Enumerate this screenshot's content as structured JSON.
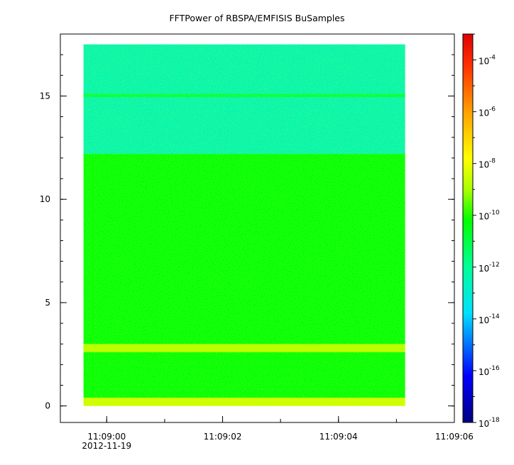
{
  "chart_data": {
    "type": "heatmap",
    "title": "FFTPower of RBSPA/EMFISIS  BuSamples",
    "xlabel": "",
    "ylabel": "",
    "x": {
      "range_seconds_after_11_09_00": [
        -0.8,
        6.0
      ],
      "data_extent_seconds_after_11_09_00": [
        -0.4,
        5.15
      ],
      "ticks": [
        {
          "value": 0,
          "label": "11:09:00",
          "sublabel": "2012-11-19"
        },
        {
          "value": 2,
          "label": "11:09:02"
        },
        {
          "value": 4,
          "label": "11:09:04"
        },
        {
          "value": 6,
          "label": "11:09:06"
        }
      ],
      "minor_tick_step": 1
    },
    "y": {
      "range": [
        -0.8,
        18.0
      ],
      "data_extent": [
        0,
        17.5
      ],
      "ticks": [
        {
          "value": 0,
          "label": "0"
        },
        {
          "value": 5,
          "label": "5"
        },
        {
          "value": 10,
          "label": "10"
        },
        {
          "value": 15,
          "label": "15"
        }
      ]
    },
    "spectrogram_bands": [
      {
        "y_from": 0.0,
        "y_to": 0.4,
        "level": "yellow",
        "log10_power": -8.5
      },
      {
        "y_from": 0.4,
        "y_to": 12.2,
        "level": "green-yellow",
        "log10_power": -10.3
      },
      {
        "y_from": 2.6,
        "y_to": 3.0,
        "level": "yellow",
        "log10_power": -8.8
      },
      {
        "y_from": 12.2,
        "y_to": 17.5,
        "level": "cyan-green",
        "log10_power": -12.5
      },
      {
        "y_from": 14.95,
        "y_to": 15.1,
        "level": "green",
        "log10_power": -11.0
      }
    ],
    "colorbar": {
      "scale": "log",
      "range_log10": [
        -18,
        -3
      ],
      "ticks": [
        {
          "exp": -4,
          "label_base": "10",
          "label_exp": "-4"
        },
        {
          "exp": -6,
          "label_base": "10",
          "label_exp": "-6"
        },
        {
          "exp": -8,
          "label_base": "10",
          "label_exp": "-8"
        },
        {
          "exp": -10,
          "label_base": "10",
          "label_exp": "-10"
        },
        {
          "exp": -12,
          "label_base": "10",
          "label_exp": "-12"
        },
        {
          "exp": -14,
          "label_base": "10",
          "label_exp": "-14"
        },
        {
          "exp": -16,
          "label_base": "10",
          "label_exp": "-16"
        },
        {
          "exp": -18,
          "label_base": "10",
          "label_exp": "-18"
        }
      ],
      "colormap": "rainbow"
    },
    "grid": false,
    "legend": "none"
  }
}
